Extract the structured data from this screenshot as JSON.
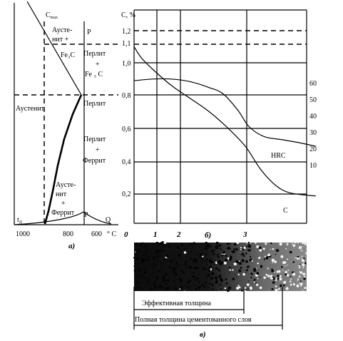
{
  "phase_diagram": {
    "label_cmax": "C",
    "label_cmax_sub": "max",
    "label_p_top": "P",
    "label_austenite_cementite_1": "Аусте-",
    "label_austenite_cementite_2": "нит +",
    "label_austenite_cementite_3": "Fe₃C",
    "label_pearlite_cementite_1": "Перлит",
    "label_pearlite_cementite_2": "+",
    "label_pearlite_cementite_3": "Fe ₃ C",
    "label_austenite": "Аустенит",
    "label_pearlite": "Перлит",
    "label_pearlite_ferrite_1": "Перлит",
    "label_pearlite_ferrite_2": "+",
    "label_pearlite_ferrite_3": "Феррит",
    "label_austenite_ferrite_1": "Аусте-",
    "label_austenite_ferrite_2": "нит",
    "label_austenite_ferrite_3": "+",
    "label_austenite_ferrite_4": "Феррит",
    "label_td": "t",
    "label_td_sub": "Д",
    "label_p_bottom": "P",
    "label_q": "Q",
    "x_ticks": [
      "1000",
      "800",
      "600",
      "° C"
    ],
    "panel_letter": "а)"
  },
  "profile_chart": {
    "c_axis_title": "C, %",
    "c_ticks": [
      "1,2",
      "1,1",
      "1,0",
      "0,8",
      "0,6",
      "0,4",
      "0,2"
    ],
    "hrc_ticks": [
      "60",
      "50",
      "40",
      "30",
      "20",
      "10"
    ],
    "x_ticks": [
      "0",
      "1",
      "2",
      "3"
    ],
    "panel_letter": "б)",
    "hrc_label": "HRC",
    "c_label": "C"
  },
  "chart_data": [
    {
      "type": "line",
      "title": "",
      "xlabel": "",
      "ylabel": "C, %",
      "x_ticks": [
        0,
        1,
        2,
        3
      ],
      "y_ticks": [
        0.2,
        0.4,
        0.6,
        0.8,
        1.0,
        1.1,
        1.2
      ],
      "series": [
        {
          "name": "C",
          "x": [
            0.0,
            0.2,
            0.5,
            1.0,
            1.5,
            2.0,
            2.5,
            3.0,
            3.4,
            3.8,
            4.2,
            4.9
          ],
          "y": [
            1.1,
            1.03,
            0.96,
            0.86,
            0.78,
            0.7,
            0.6,
            0.48,
            0.34,
            0.24,
            0.19,
            0.17
          ]
        }
      ]
    },
    {
      "type": "line",
      "title": "",
      "ylabel": "HRC",
      "x_ticks": [
        0,
        1,
        2,
        3
      ],
      "y_ticks": [
        10,
        20,
        30,
        40,
        50,
        60
      ],
      "series": [
        {
          "name": "HRC",
          "x": [
            0.0,
            0.5,
            1.0,
            1.5,
            2.0,
            2.4,
            2.8,
            3.1,
            3.5,
            4.0,
            4.5,
            4.9
          ],
          "y": [
            63,
            64,
            64,
            62.5,
            59,
            55,
            45,
            35,
            29,
            27,
            25,
            23
          ]
        }
      ]
    }
  ],
  "micrograph": {
    "panel_letter": "в)",
    "effective_label": "Эффективная толщина",
    "total_label": "Полная толщина цементованного слоя"
  }
}
